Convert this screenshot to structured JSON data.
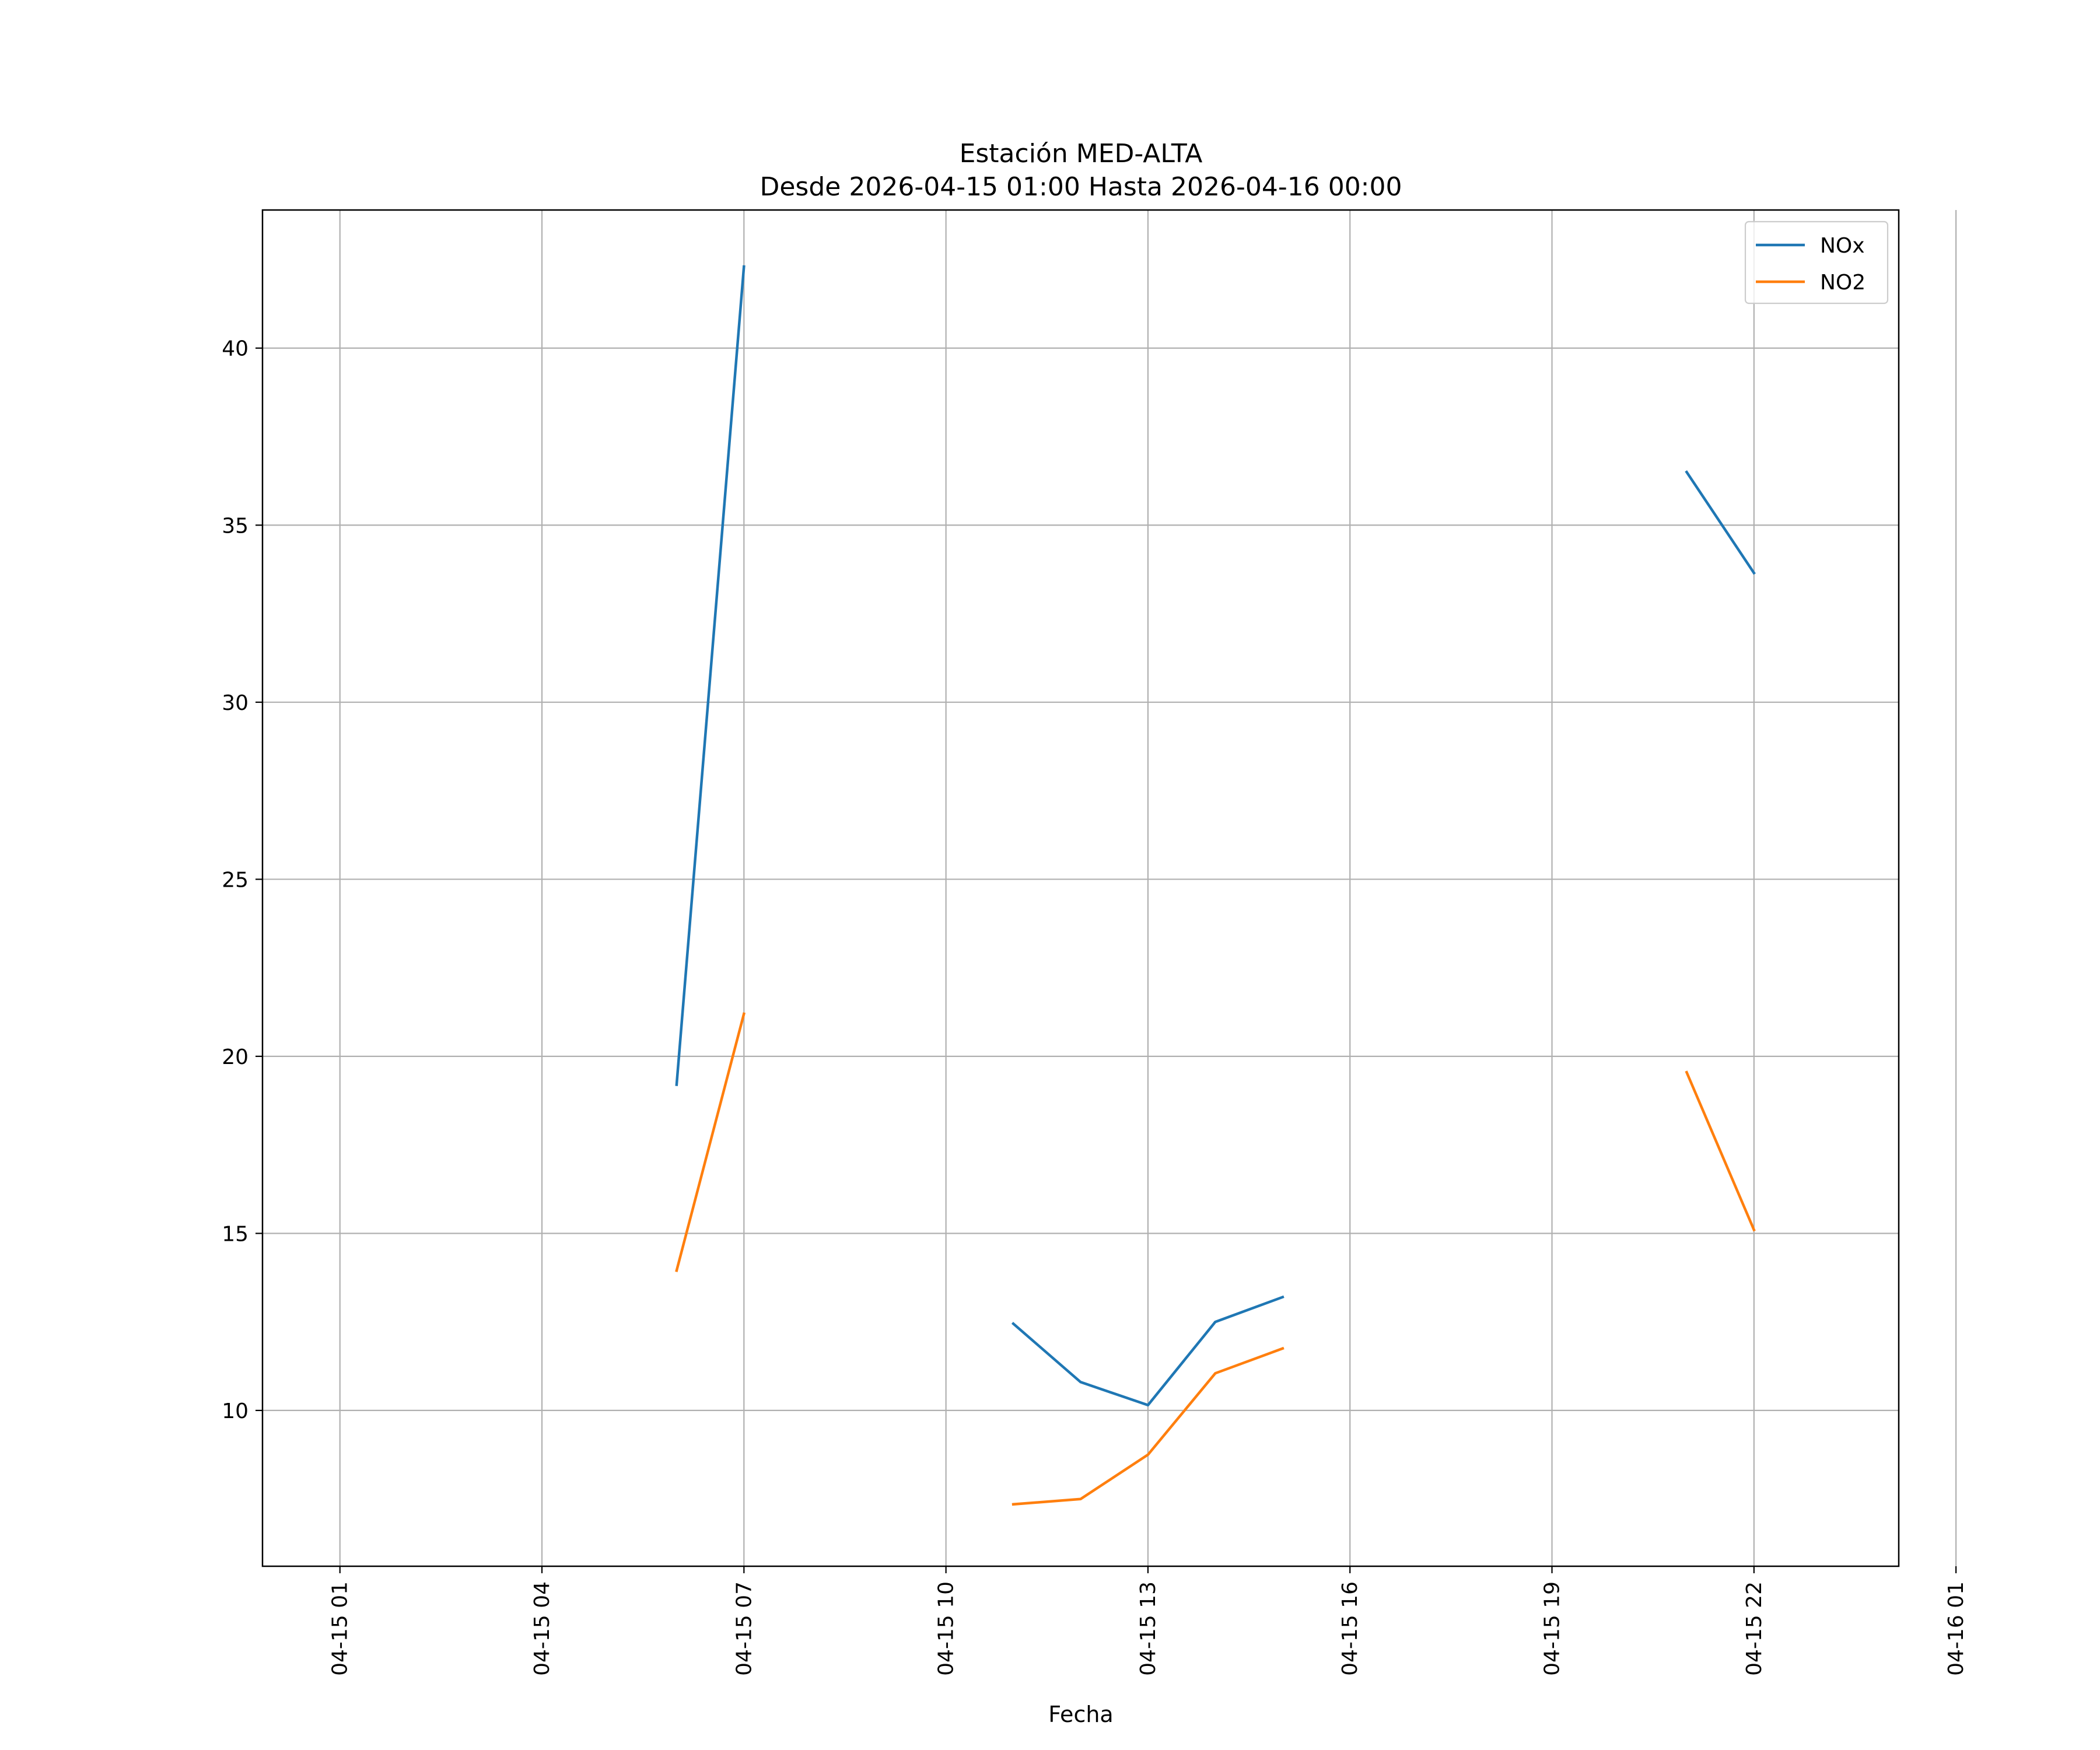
{
  "chart_data": {
    "type": "line",
    "title": "Estación MED-ALTA",
    "subtitle": "Desde 2026-04-15 01:00 Hasta 2026-04-16 00:00",
    "xlabel": "Fecha",
    "ylabel": "",
    "x_axis_type": "datetime",
    "xlim": [
      "2026-04-14 23:51",
      "2026-04-16 00:09"
    ],
    "ylim": [
      5.6,
      43.9
    ],
    "x_ticks": [
      {
        "value": "2026-04-15 01:00",
        "label": "04-15 01"
      },
      {
        "value": "2026-04-15 04:00",
        "label": "04-15 04"
      },
      {
        "value": "2026-04-15 07:00",
        "label": "04-15 07"
      },
      {
        "value": "2026-04-15 10:00",
        "label": "04-15 10"
      },
      {
        "value": "2026-04-15 13:00",
        "label": "04-15 13"
      },
      {
        "value": "2026-04-15 16:00",
        "label": "04-15 16"
      },
      {
        "value": "2026-04-15 19:00",
        "label": "04-15 19"
      },
      {
        "value": "2026-04-15 22:00",
        "label": "04-15 22"
      },
      {
        "value": "2026-04-16 01:00",
        "label": "04-16 01"
      }
    ],
    "y_ticks": [
      10,
      15,
      20,
      25,
      30,
      35,
      40
    ],
    "grid": true,
    "legend_position": "top-right",
    "series": [
      {
        "name": "NOx",
        "color": "#1f77b4",
        "points": [
          {
            "x": "2026-04-15 06:00",
            "y": 19.2
          },
          {
            "x": "2026-04-15 07:00",
            "y": 42.3
          },
          {
            "x": "2026-04-15 11:00",
            "y": 12.45
          },
          {
            "x": "2026-04-15 12:00",
            "y": 10.8
          },
          {
            "x": "2026-04-15 13:00",
            "y": 10.15
          },
          {
            "x": "2026-04-15 14:00",
            "y": 12.5
          },
          {
            "x": "2026-04-15 15:00",
            "y": 13.2
          },
          {
            "x": "2026-04-15 21:00",
            "y": 36.5
          },
          {
            "x": "2026-04-15 22:00",
            "y": 33.65
          }
        ]
      },
      {
        "name": "NO2",
        "color": "#ff7f0e",
        "points": [
          {
            "x": "2026-04-15 06:00",
            "y": 13.95
          },
          {
            "x": "2026-04-15 07:00",
            "y": 21.2
          },
          {
            "x": "2026-04-15 11:00",
            "y": 7.35
          },
          {
            "x": "2026-04-15 12:00",
            "y": 7.5
          },
          {
            "x": "2026-04-15 13:00",
            "y": 8.75
          },
          {
            "x": "2026-04-15 14:00",
            "y": 11.05
          },
          {
            "x": "2026-04-15 15:00",
            "y": 11.75
          },
          {
            "x": "2026-04-15 21:00",
            "y": 19.55
          },
          {
            "x": "2026-04-15 22:00",
            "y": 15.1
          }
        ]
      }
    ]
  }
}
